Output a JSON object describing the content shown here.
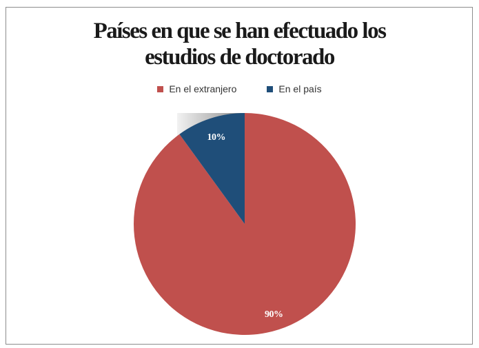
{
  "chart_data": {
    "type": "pie",
    "title_lines": [
      "Países en que se han efectuado los",
      "estudios de doctorado"
    ],
    "categories": [
      "En el extranjero",
      "En el país"
    ],
    "values": [
      90,
      10
    ],
    "data_labels": [
      "90%",
      "10%"
    ],
    "colors": [
      "#c0504d",
      "#1f4e79"
    ],
    "legend_position": "top"
  }
}
